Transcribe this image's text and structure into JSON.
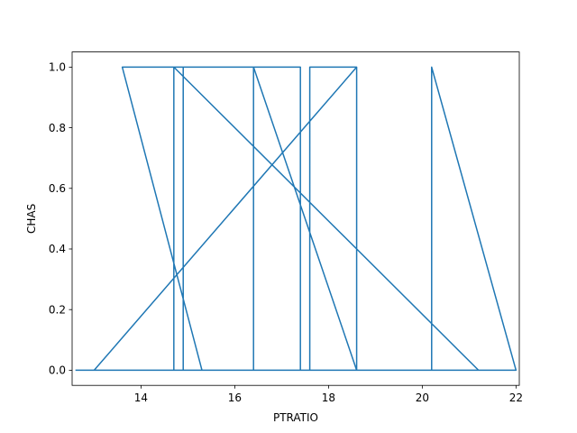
{
  "chart_data": {
    "type": "line",
    "title": "",
    "xlabel": "PTRATIO",
    "ylabel": "CHAS",
    "xlim": [
      12.53,
      22.07
    ],
    "ylim": [
      -0.05,
      1.05
    ],
    "xticks": [
      14,
      16,
      18,
      20,
      22
    ],
    "xtick_labels": [
      "14",
      "16",
      "18",
      "20",
      "22"
    ],
    "yticks": [
      0.0,
      0.2,
      0.4,
      0.6,
      0.8,
      1.0
    ],
    "ytick_labels": [
      "0.0",
      "0.2",
      "0.4",
      "0.6",
      "0.8",
      "1.0"
    ],
    "grid": false,
    "color": "#1f77b4",
    "series": [
      {
        "points": [
          [
            12.6,
            0
          ],
          [
            22.0,
            0
          ],
          [
            20.2,
            0
          ],
          [
            20.2,
            1
          ],
          [
            22.0,
            0
          ],
          [
            18.6,
            0
          ],
          [
            18.6,
            1
          ],
          [
            13.0,
            0
          ],
          [
            17.6,
            0
          ],
          [
            17.6,
            1
          ],
          [
            18.6,
            1
          ],
          [
            18.6,
            0
          ],
          [
            16.4,
            1
          ],
          [
            17.4,
            1
          ],
          [
            17.4,
            0
          ],
          [
            16.4,
            0
          ],
          [
            16.4,
            1
          ],
          [
            14.7,
            1
          ],
          [
            14.7,
            0
          ],
          [
            14.9,
            0
          ],
          [
            14.9,
            1
          ],
          [
            13.6,
            1
          ],
          [
            15.3,
            0
          ],
          [
            14.7,
            0
          ],
          [
            14.7,
            1
          ],
          [
            21.2,
            0
          ],
          [
            12.6,
            0
          ]
        ]
      }
    ]
  }
}
